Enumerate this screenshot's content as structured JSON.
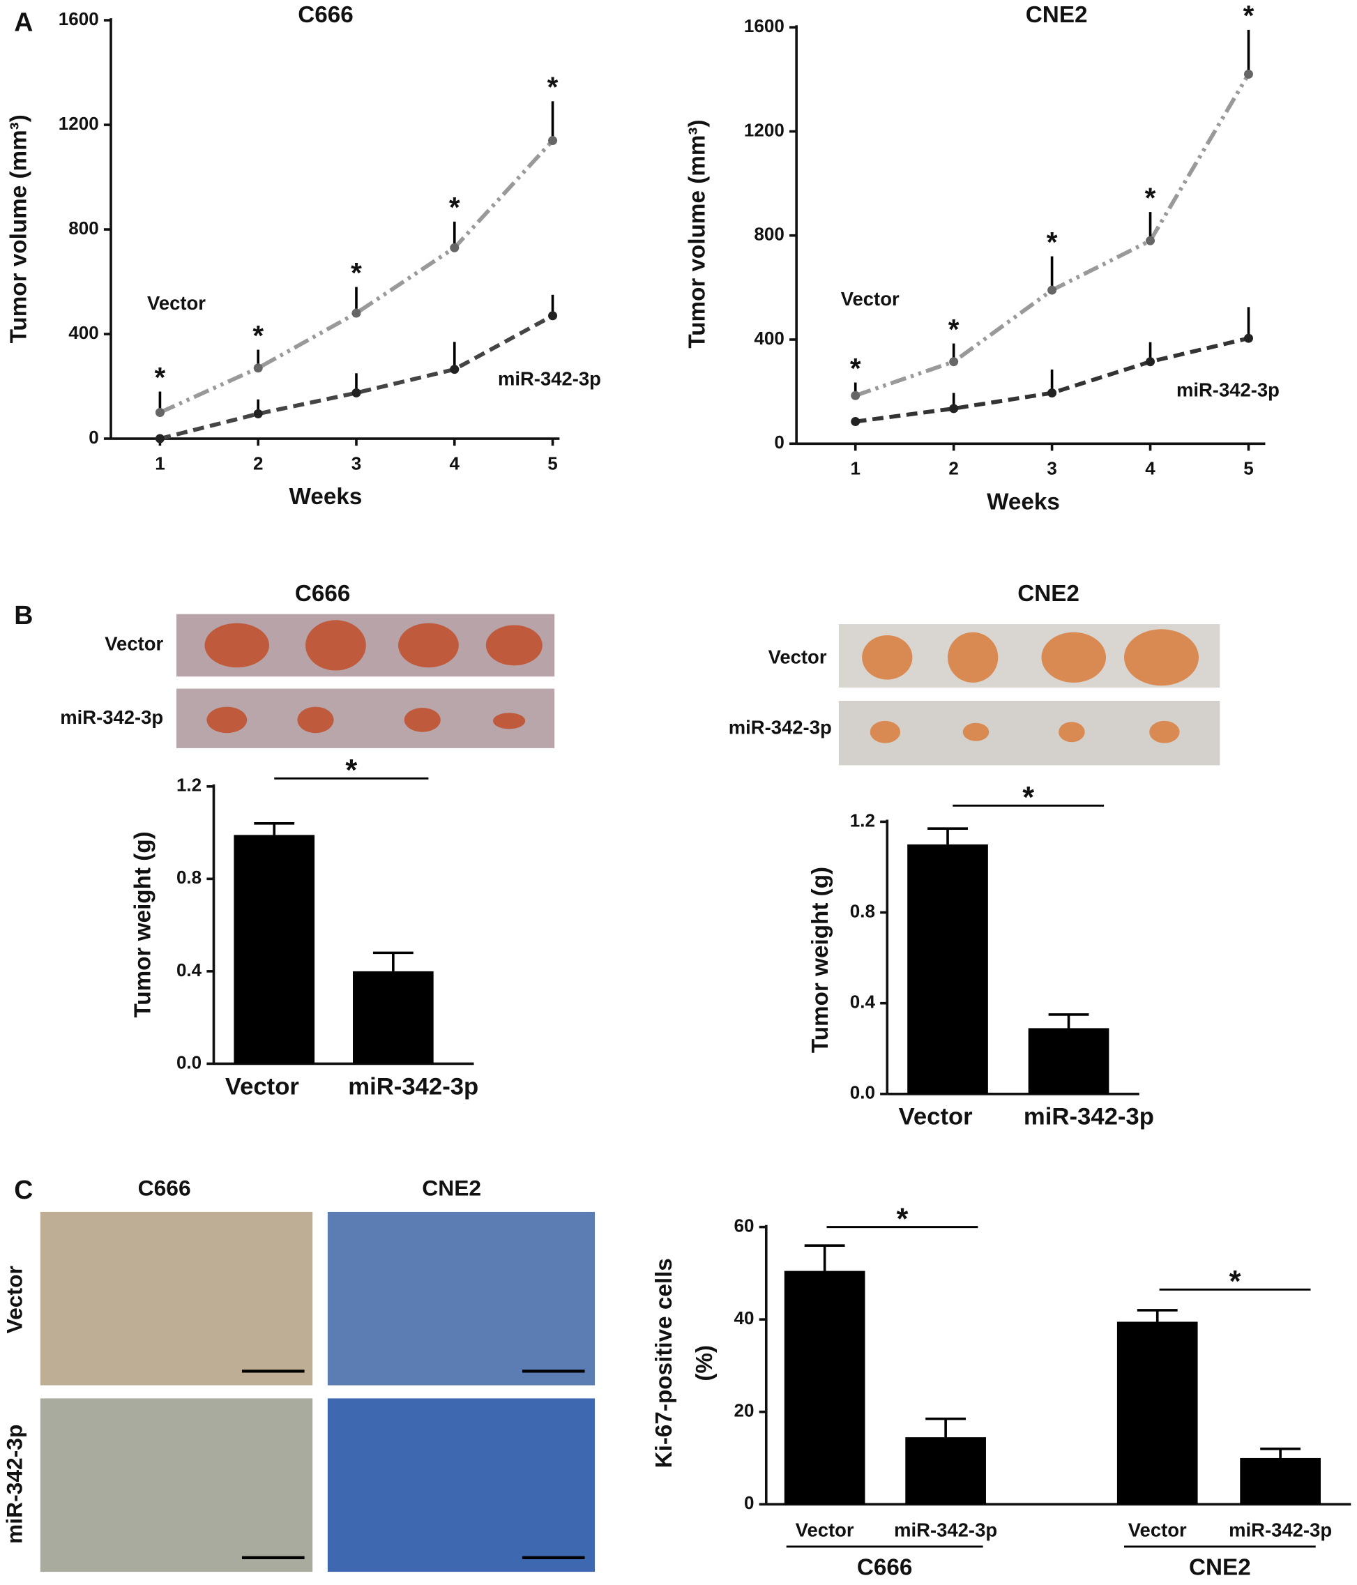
{
  "panel_labels": [
    "A",
    "B",
    "C"
  ],
  "ihc": {
    "columns": [
      "C666",
      "CNE2"
    ],
    "rows": [
      "Vector",
      "miR-342-3p"
    ]
  },
  "chart_data": [
    {
      "type": "line",
      "title": "C666",
      "xlabel": "Weeks",
      "ylabel": "Tumor volume (mm³)",
      "x": [
        1,
        2,
        3,
        4,
        5
      ],
      "xlim": [
        0.5,
        5.07
      ],
      "xticks": [
        1,
        2,
        3,
        4,
        5
      ],
      "ylim": [
        0,
        1600
      ],
      "yticks": [
        0,
        400,
        800,
        1200,
        1600
      ],
      "series": [
        {
          "name": "Vector",
          "color": "#999999",
          "values": [
            100,
            270,
            480,
            730,
            1140
          ],
          "errors": [
            80,
            70,
            100,
            100,
            150
          ]
        },
        {
          "name": "miR-342-3p",
          "color": "#444444",
          "values": [
            0,
            95,
            175,
            265,
            470
          ],
          "errors": [
            0,
            55,
            75,
            105,
            80
          ]
        }
      ],
      "significance": [
        "*",
        "*",
        "*",
        "*",
        "*"
      ]
    },
    {
      "type": "line",
      "title": "CNE2",
      "xlabel": "Weeks",
      "ylabel": "Tumor volume (mm³)",
      "x": [
        1,
        2,
        3,
        4,
        5
      ],
      "xlim": [
        0.4,
        5.17
      ],
      "xticks": [
        1,
        2,
        3,
        4,
        5
      ],
      "ylim": [
        0,
        1600
      ],
      "yticks": [
        0,
        400,
        800,
        1200,
        1600
      ],
      "series": [
        {
          "name": "Vector",
          "color": "#999999",
          "values": [
            185,
            315,
            590,
            780,
            1420
          ],
          "errors": [
            50,
            70,
            130,
            110,
            170
          ]
        },
        {
          "name": "miR-342-3p",
          "color": "#333333",
          "values": [
            85,
            135,
            195,
            315,
            405
          ],
          "errors": [
            0,
            60,
            90,
            75,
            120
          ]
        }
      ],
      "significance": [
        "*",
        "*",
        "*",
        "*",
        "*"
      ]
    },
    {
      "type": "bar",
      "title": "C666",
      "ylabel": "Tumor weight (g)",
      "categories": [
        "Vector",
        "miR-342-3p"
      ],
      "values": [
        0.99,
        0.4
      ],
      "errors": [
        0.05,
        0.08
      ],
      "color": "#000000",
      "ylim": [
        0,
        1.2
      ],
      "yticks": [
        {
          "value": 0,
          "label": "0.0"
        },
        0.4,
        0.8,
        1.2
      ],
      "significance": [
        "*"
      ]
    },
    {
      "type": "bar",
      "title": "CNE2",
      "ylabel": "Tumor weight (g)",
      "categories": [
        "Vector",
        "miR-342-3p"
      ],
      "values": [
        1.1,
        0.29
      ],
      "errors": [
        0.07,
        0.06
      ],
      "color": "#000000",
      "ylim": [
        0,
        1.2
      ],
      "yticks": [
        {
          "value": 0,
          "label": "0.0"
        },
        0.4,
        0.8,
        1.2
      ],
      "significance": [
        "*"
      ]
    },
    {
      "type": "grouped-bar",
      "ylabel": [
        "Ki-67-positive cells",
        "(%)"
      ],
      "categories": [
        "Vector",
        "miR-342-3p",
        "Vector",
        "miR-342-3p"
      ],
      "groups": [
        "C666",
        "CNE2"
      ],
      "values": [
        50.5,
        14.5,
        39.5,
        10
      ],
      "errors": [
        5.5,
        4,
        2.5,
        2
      ],
      "color": "#000000",
      "ylim": [
        0,
        60
      ],
      "yticks": [
        0,
        20,
        40,
        60
      ],
      "significance": [
        "*",
        "*"
      ]
    }
  ]
}
